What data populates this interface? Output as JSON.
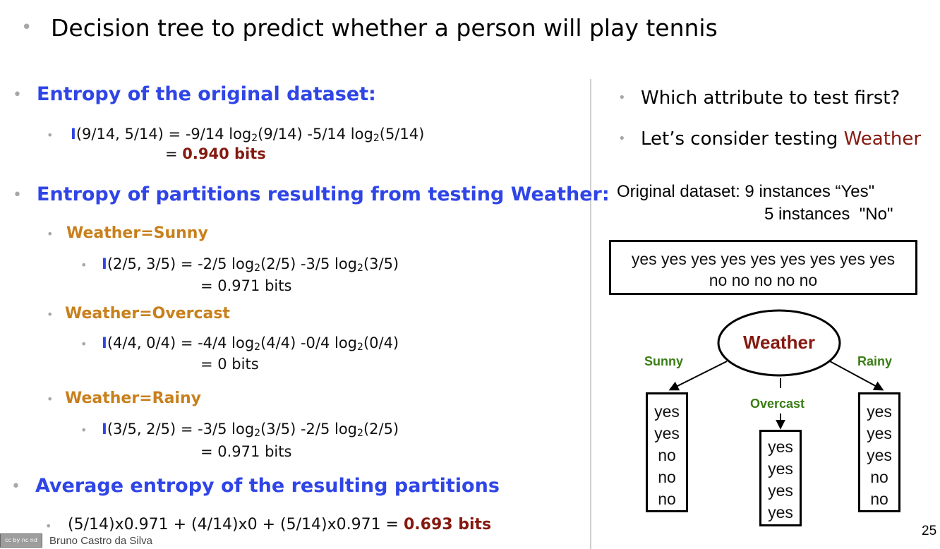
{
  "header": {
    "title": "Decision tree to predict whether a person will play tennis"
  },
  "left": {
    "entropy_original": {
      "heading": "Entropy of the original dataset:",
      "I": "I",
      "formula": "(9/14, 5/14) = -9/14 log",
      "result_prefix": "= ",
      "result": "0.940 bits"
    },
    "partitions": {
      "heading": "Entropy of partitions resulting from testing Weather:",
      "items": [
        {
          "label": "Weather=Sunny",
          "I": "I",
          "formula": "(2/5, 3/5) = -2/5 log",
          "result": "= 0.971 bits"
        },
        {
          "label": "Weather=Overcast",
          "I": "I",
          "formula": "(4/4, 0/4) = -4/4 log",
          "result": "= 0 bits"
        },
        {
          "label": "Weather=Rainy",
          "I": "I",
          "formula": "(3/5, 2/5) = -3/5 log",
          "result": "= 0.971 bits"
        }
      ]
    },
    "average": {
      "heading": "Average entropy of the resulting partitions",
      "formula": "(5/14)x0.971 + (4/14)x0 + (5/14)x0.971 = ",
      "result": "0.693 bits"
    }
  },
  "right": {
    "q1": "Which attribute to test first?",
    "q2_prefix": "Let’s consider testing",
    "q2_attr": "Weather",
    "dataset_line1": "Original dataset: 9 instances “Yes\"",
    "dataset_line2": "5 instances  \"No\"",
    "root_box_line1": "yes yes yes yes yes yes yes yes yes",
    "root_box_line2": "no no no no no",
    "node": "Weather",
    "branches": [
      "Sunny",
      "Overcast",
      "Rainy"
    ],
    "leaves": {
      "sunny": [
        "yes",
        "yes",
        "no",
        "no",
        "no"
      ],
      "overcast": [
        "yes",
        "yes",
        "yes",
        "yes"
      ],
      "rainy": [
        "yes",
        "yes",
        "yes",
        "no",
        "no"
      ]
    }
  },
  "footer": {
    "author": "Bruno Castro da Silva",
    "page": "25",
    "license_badge": "cc by nc nd"
  },
  "colors": {
    "heading": "#2f45e6",
    "label": "#c8801c",
    "result": "#851a10",
    "branch": "#3a7d16"
  }
}
